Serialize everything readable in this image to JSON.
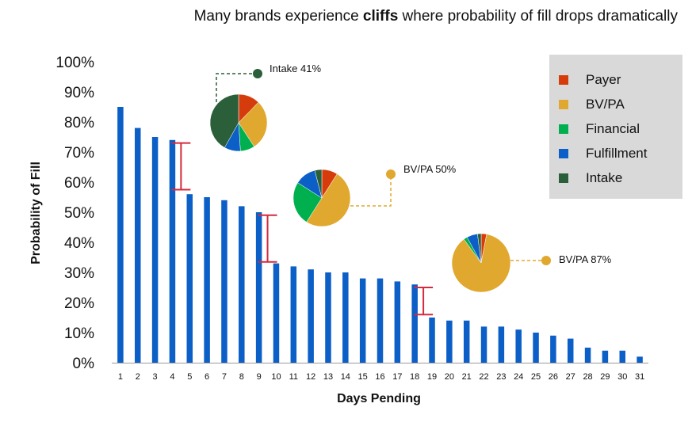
{
  "title": {
    "before": "Many brands experience ",
    "bold": "cliffs",
    "after": " where probability of fill drops dramatically"
  },
  "chart_data": {
    "type": "bar",
    "xlabel": "Days Pending",
    "ylabel": "Probability of Fill",
    "ylim": [
      0,
      100
    ],
    "yticks": [
      "0%",
      "10%",
      "20%",
      "30%",
      "40%",
      "50%",
      "60%",
      "70%",
      "80%",
      "90%",
      "100%"
    ],
    "categories": [
      "1",
      "2",
      "3",
      "4",
      "5",
      "6",
      "7",
      "8",
      "9",
      "10",
      "11",
      "12",
      "13",
      "14",
      "15",
      "16",
      "17",
      "18",
      "19",
      "20",
      "21",
      "22",
      "23",
      "24",
      "25",
      "26",
      "27",
      "28",
      "29",
      "30",
      "31"
    ],
    "values": [
      85,
      78,
      75,
      74,
      56,
      55,
      54,
      52,
      50,
      33,
      32,
      31,
      30,
      30,
      28,
      28,
      27,
      26,
      15,
      14,
      14,
      12,
      12,
      11,
      10,
      9,
      8,
      5,
      4,
      4,
      2
    ],
    "bar_color": "#0b5fc6",
    "cliff_color": "#d42a3e",
    "cliffs": [
      {
        "between": [
          "4",
          "5"
        ],
        "from": 73,
        "to": 57.5
      },
      {
        "between": [
          "9",
          "10"
        ],
        "from": 49,
        "to": 33.5
      },
      {
        "between": [
          "18",
          "19"
        ],
        "from": 25,
        "to": 16
      }
    ],
    "legend": {
      "position": "top-right",
      "items": [
        {
          "label": "Payer",
          "color": "#d63b0c"
        },
        {
          "label": "BV/PA",
          "color": "#e0a82e"
        },
        {
          "label": "Financial",
          "color": "#00b04f"
        },
        {
          "label": "Fulfillment",
          "color": "#0b5fc6"
        },
        {
          "label": "Intake",
          "color": "#2a5f3a"
        }
      ]
    },
    "pies": [
      {
        "callout": "Intake 41%",
        "callout_color": "#2a5f3a",
        "slices": [
          {
            "segment": "Payer",
            "value": 12
          },
          {
            "segment": "BV/PA",
            "value": 28
          },
          {
            "segment": "Financial",
            "value": 8
          },
          {
            "segment": "Fulfillment",
            "value": 9
          },
          {
            "segment": "Intake",
            "value": 41
          }
        ]
      },
      {
        "callout": "BV/PA 50%",
        "callout_color": "#e0a82e",
        "slices": [
          {
            "segment": "Payer",
            "value": 9
          },
          {
            "segment": "BV/PA",
            "value": 50
          },
          {
            "segment": "Financial",
            "value": 25
          },
          {
            "segment": "Fulfillment",
            "value": 12
          },
          {
            "segment": "Intake",
            "value": 4
          }
        ]
      },
      {
        "callout": "BV/PA 87%",
        "callout_color": "#e0a82e",
        "slices": [
          {
            "segment": "Payer",
            "value": 3
          },
          {
            "segment": "BV/PA",
            "value": 87
          },
          {
            "segment": "Financial",
            "value": 2
          },
          {
            "segment": "Fulfillment",
            "value": 6
          },
          {
            "segment": "Intake",
            "value": 2
          }
        ]
      }
    ]
  }
}
